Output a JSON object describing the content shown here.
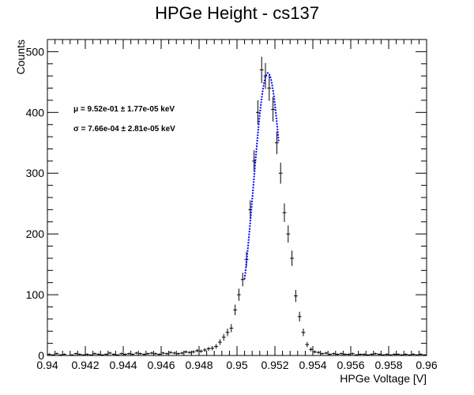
{
  "chart_data": {
    "type": "scatter",
    "title": "HPGe Height - cs137",
    "xlabel": "HPGe Voltage [V]",
    "ylabel": "Counts",
    "xlim": [
      0.94,
      0.96
    ],
    "ylim": [
      0,
      520
    ],
    "grid": false,
    "xticks": [
      "0.94",
      "0.942",
      "0.944",
      "0.946",
      "0.948",
      "0.95",
      "0.952",
      "0.954",
      "0.956",
      "0.958",
      "0.96"
    ],
    "yticks": [
      "0",
      "100",
      "200",
      "300",
      "400",
      "500"
    ],
    "annotations": [
      "μ = 9.52e-01 ± 1.77e-05 keV",
      "σ = 7.66e-04 ± 2.81e-05 keV"
    ],
    "fit": {
      "mean": 0.95163,
      "sigma": 0.00076,
      "amplitude": 465,
      "range": [
        0.9504,
        0.9522
      ]
    },
    "series": [
      {
        "x": [
          0.94,
          0.9402,
          0.9404,
          0.9406,
          0.9408,
          0.941,
          0.9412,
          0.9414,
          0.9416,
          0.9418,
          0.942,
          0.9422,
          0.9424,
          0.9426,
          0.9428,
          0.943,
          0.9432,
          0.9434,
          0.9436,
          0.9438,
          0.944,
          0.9442,
          0.9444,
          0.9446,
          0.9448,
          0.945,
          0.9452,
          0.9454,
          0.9456,
          0.9458,
          0.946,
          0.9462,
          0.9464,
          0.9466,
          0.9468,
          0.947,
          0.9472,
          0.9474,
          0.9476,
          0.9478,
          0.948,
          0.9482,
          0.9484,
          0.9486,
          0.9488,
          0.949,
          0.9492,
          0.9494,
          0.9496,
          0.9498,
          0.95,
          0.9502,
          0.9504,
          0.9506,
          0.9508,
          0.951,
          0.9512,
          0.9514,
          0.9516,
          0.9518,
          0.952,
          0.9522,
          0.9524,
          0.9526,
          0.9528,
          0.953,
          0.9532,
          0.9534,
          0.9536,
          0.9538,
          0.954,
          0.9542,
          0.9544,
          0.9546,
          0.9548,
          0.955,
          0.9552,
          0.9554,
          0.9556,
          0.9558,
          0.956,
          0.9562,
          0.9564,
          0.9566,
          0.9568,
          0.957,
          0.9572,
          0.9574,
          0.9576,
          0.9578,
          0.958,
          0.9582,
          0.9584,
          0.9586,
          0.9588,
          0.959,
          0.9592,
          0.9594,
          0.9596,
          0.9598
        ],
        "y": [
          2,
          1,
          3,
          1,
          2,
          0,
          1,
          3,
          2,
          1,
          2,
          1,
          3,
          2,
          1,
          2,
          4,
          2,
          1,
          3,
          2,
          3,
          2,
          4,
          3,
          2,
          3,
          4,
          3,
          2,
          4,
          3,
          5,
          4,
          3,
          4,
          6,
          5,
          6,
          8,
          7,
          9,
          11,
          12,
          15,
          22,
          30,
          38,
          45,
          75,
          100,
          125,
          158,
          240,
          320,
          400,
          470,
          460,
          440,
          405,
          350,
          300,
          235,
          200,
          160,
          98,
          64,
          38,
          18,
          10,
          6,
          5,
          3,
          4,
          2,
          3,
          2,
          3,
          2,
          2,
          3,
          1,
          2,
          2,
          1,
          2,
          3,
          2,
          1,
          2,
          1,
          2,
          2,
          1,
          2,
          1,
          2,
          1,
          2,
          1
        ],
        "yerr": [
          1.4,
          1.0,
          1.7,
          1.0,
          1.4,
          1.0,
          1.0,
          1.7,
          1.4,
          1.0,
          1.4,
          1.0,
          1.7,
          1.4,
          1.0,
          1.4,
          2.0,
          1.4,
          1.0,
          1.7,
          1.4,
          1.7,
          1.4,
          2.0,
          1.7,
          1.4,
          1.7,
          2.0,
          1.7,
          1.4,
          2.0,
          1.7,
          2.2,
          2.0,
          1.7,
          2.0,
          2.4,
          2.2,
          2.4,
          2.8,
          2.6,
          3.0,
          3.3,
          3.5,
          3.9,
          4.7,
          5.5,
          6.2,
          6.7,
          8.7,
          10.0,
          11.2,
          12.6,
          15.5,
          17.9,
          20.0,
          21.7,
          21.4,
          21.0,
          20.1,
          18.7,
          17.3,
          15.3,
          14.1,
          12.6,
          9.9,
          8.0,
          6.2,
          4.2,
          3.2,
          2.4,
          2.2,
          1.7,
          2.0,
          1.4,
          1.7,
          1.4,
          1.7,
          1.4,
          1.4,
          1.7,
          1.0,
          1.4,
          1.4,
          1.0,
          1.4,
          1.7,
          1.4,
          1.0,
          1.4,
          1.0,
          1.4,
          1.4,
          1.0,
          1.4,
          1.0,
          1.4,
          1.0,
          1.4,
          1.0
        ]
      }
    ]
  }
}
